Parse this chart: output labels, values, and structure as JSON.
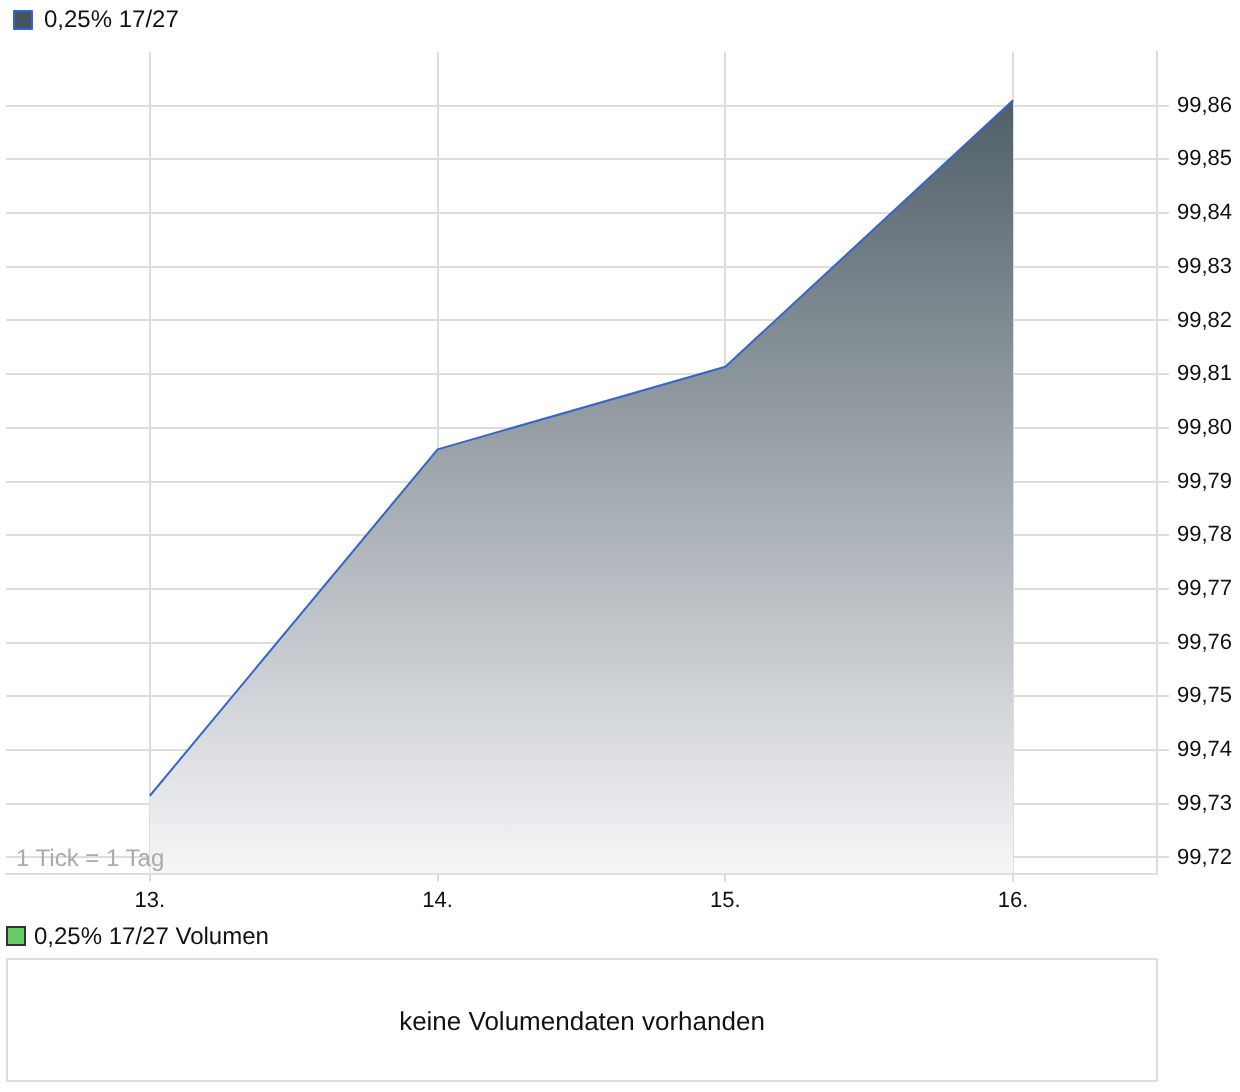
{
  "chart_data": {
    "type": "area",
    "x": [
      13,
      14,
      15,
      16
    ],
    "series": [
      {
        "name": "0,25% 17/27",
        "color": "#3366cc",
        "values": [
          99.7315,
          99.796,
          99.8114,
          99.861
        ]
      }
    ],
    "xlim": [
      12.5,
      16.5
    ],
    "xticks": [
      {
        "value": 13,
        "label": "13."
      },
      {
        "value": 14,
        "label": "14."
      },
      {
        "value": 15,
        "label": "15."
      },
      {
        "value": 16,
        "label": "16."
      }
    ],
    "ylim": [
      99.717,
      99.87
    ],
    "yticks": [
      {
        "value": 99.72,
        "label": "99,72"
      },
      {
        "value": 99.73,
        "label": "99,73"
      },
      {
        "value": 99.74,
        "label": "99,74"
      },
      {
        "value": 99.75,
        "label": "99,75"
      },
      {
        "value": 99.76,
        "label": "99,76"
      },
      {
        "value": 99.77,
        "label": "99,77"
      },
      {
        "value": 99.78,
        "label": "99,78"
      },
      {
        "value": 99.79,
        "label": "99,79"
      },
      {
        "value": 99.8,
        "label": "99,80"
      },
      {
        "value": 99.81,
        "label": "99,81"
      },
      {
        "value": 99.82,
        "label": "99,82"
      },
      {
        "value": 99.83,
        "label": "99,83"
      },
      {
        "value": 99.84,
        "label": "99,84"
      },
      {
        "value": 99.85,
        "label": "99,85"
      },
      {
        "value": 99.86,
        "label": "99,86"
      }
    ],
    "grid": true,
    "legend": "top left",
    "marker": "none",
    "annotations": [
      "1 Tick = 1 Tag",
      "0,25% 17/27 Volumen",
      "keine Volumendaten vorhanden"
    ]
  }
}
